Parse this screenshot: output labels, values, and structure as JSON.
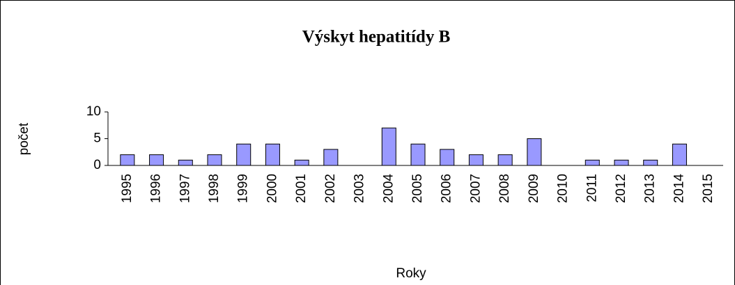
{
  "chart_data": {
    "type": "bar",
    "title": "Výskyt hepatitídy B",
    "x_label": "Roky",
    "y_label": "počet",
    "categories": [
      "1995",
      "1996",
      "1997",
      "1998",
      "1999",
      "2000",
      "2001",
      "2002",
      "2003",
      "2004",
      "2005",
      "2006",
      "2007",
      "2008",
      "2009",
      "2010",
      "2011",
      "2012",
      "2013",
      "2014",
      "2015"
    ],
    "values": [
      2,
      2,
      1,
      2,
      4,
      4,
      1,
      3,
      0,
      7,
      4,
      3,
      2,
      2,
      5,
      0,
      1,
      1,
      1,
      4,
      0
    ],
    "color": "#9999ff",
    "ylim": [
      0,
      10
    ],
    "yticks": [
      0,
      5,
      10
    ],
    "grid": false
  }
}
